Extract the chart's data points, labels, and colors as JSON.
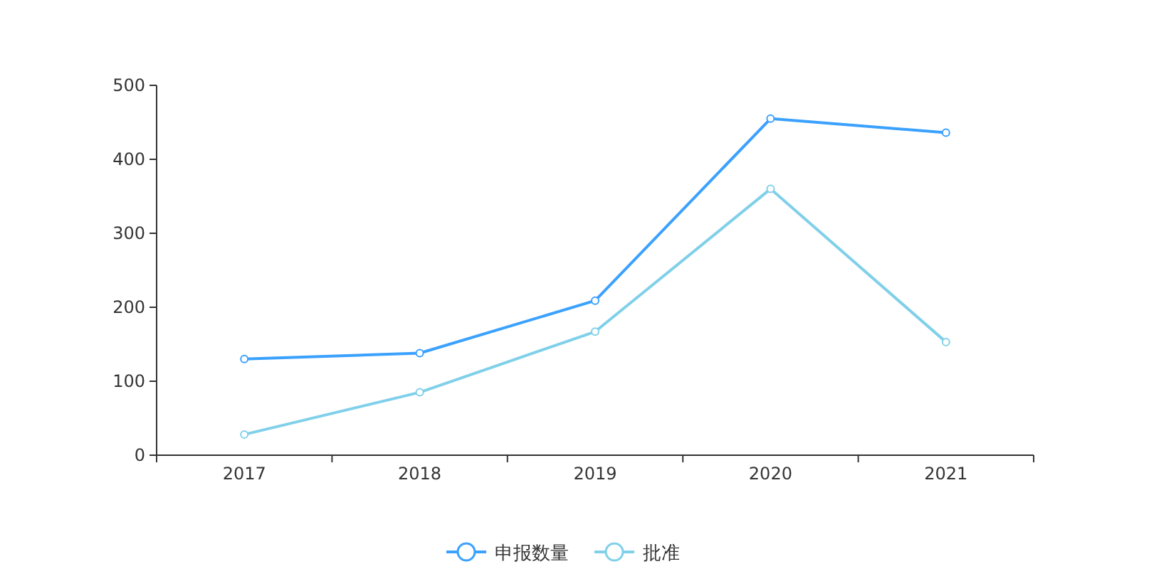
{
  "chart_data": {
    "type": "line",
    "categories": [
      "2017",
      "2018",
      "2019",
      "2020",
      "2021"
    ],
    "series": [
      {
        "name": "申报数量",
        "color": "#3ba1ff",
        "values": [
          130,
          138,
          209,
          455,
          436
        ]
      },
      {
        "name": "批准",
        "color": "#80d0ea",
        "values": [
          28,
          85,
          167,
          360,
          153
        ]
      }
    ],
    "ylim": [
      0,
      500
    ],
    "yticks": [
      0,
      100,
      200,
      300,
      400,
      500
    ],
    "grid": false,
    "legend": "bottom",
    "marker": "circle",
    "line_style": "solid"
  }
}
